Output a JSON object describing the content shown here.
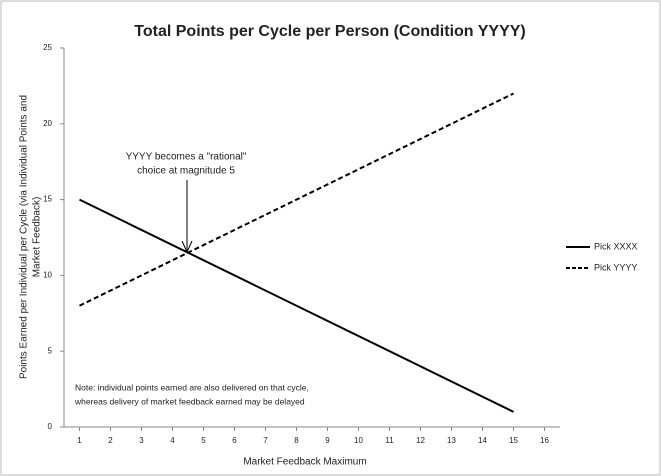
{
  "chart_data": {
    "type": "line",
    "title": "Total Points per Cycle per Person (Condition YYYY)",
    "y_label": [
      "Points Earned per Individual per Cycle (via Individual Points and",
      "Market Feedback)"
    ],
    "x_label": "Market Feedback Maximum",
    "x": [
      1,
      15
    ],
    "series": [
      {
        "name": "Pick XXXX",
        "color": "#000000",
        "dash": "solid",
        "values": [
          15,
          1
        ]
      },
      {
        "name": "Pick YYYY",
        "color": "#000000",
        "dash": "dashed",
        "values": [
          8,
          22
        ]
      }
    ],
    "xlim": [
      0.5,
      16.5
    ],
    "xticks": [
      1,
      2,
      3,
      4,
      5,
      6,
      7,
      8,
      9,
      10,
      11,
      12,
      13,
      14,
      15,
      16
    ],
    "ylim": [
      0,
      25
    ],
    "yticks": [
      0,
      5,
      10,
      15,
      20,
      25
    ],
    "legend": "right",
    "annotation": [
      "YYYY becomes a \"rational\"",
      "choice at magnitude 5"
    ],
    "note": [
      "Note: individual points earned are also delivered on that cycle,",
      "whereas delivery of market feedback earned may be delayed"
    ]
  }
}
